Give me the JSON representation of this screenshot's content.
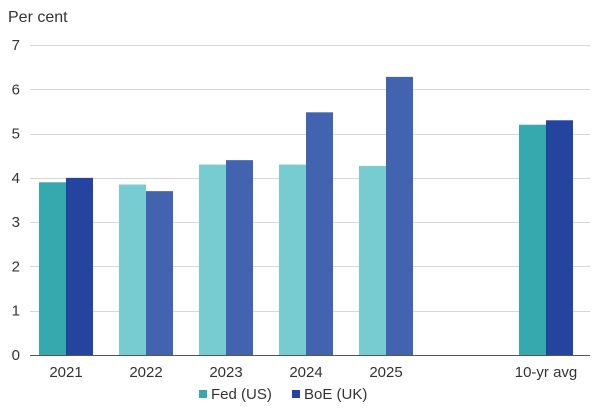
{
  "chart_data": {
    "type": "bar",
    "ylabel": "Per cent",
    "ylim": [
      0,
      7
    ],
    "yticks": [
      0,
      1,
      2,
      3,
      4,
      5,
      6,
      7
    ],
    "grid": true,
    "legend_position": "bottom",
    "categories": [
      "2021",
      "2022",
      "2023",
      "2024",
      "2025",
      "",
      "10-yr avg"
    ],
    "series": [
      {
        "name": "Fed (US)",
        "color_dark": "#35a9ad",
        "color_light": "#76ccd0",
        "values": [
          3.9,
          3.85,
          4.3,
          4.3,
          4.27,
          null,
          5.2
        ]
      },
      {
        "name": "BoE (UK)",
        "color_dark": "#2444a0",
        "color_light": "#4264b0",
        "values": [
          4.0,
          3.7,
          4.4,
          5.48,
          6.28,
          null,
          5.3
        ]
      }
    ],
    "shade": [
      "dark",
      "light",
      "light",
      "light",
      "light",
      "none",
      "dark"
    ]
  }
}
